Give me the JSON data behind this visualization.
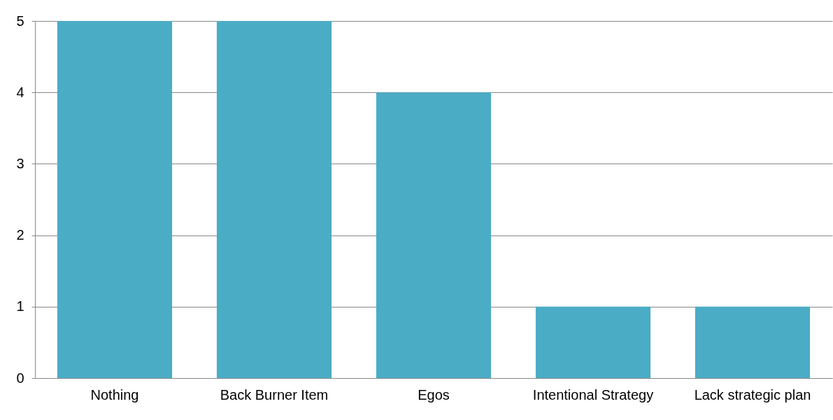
{
  "chart_data": {
    "type": "bar",
    "categories": [
      "Nothing",
      "Back Burner Item",
      "Egos",
      "Intentional Strategy",
      "Lack strategic plan"
    ],
    "values": [
      5,
      5,
      4,
      1,
      1
    ],
    "color": "#4bacc6",
    "ylim": [
      0,
      5
    ],
    "yticks": [
      0,
      1,
      2,
      3,
      4,
      5
    ],
    "grid": "y"
  }
}
